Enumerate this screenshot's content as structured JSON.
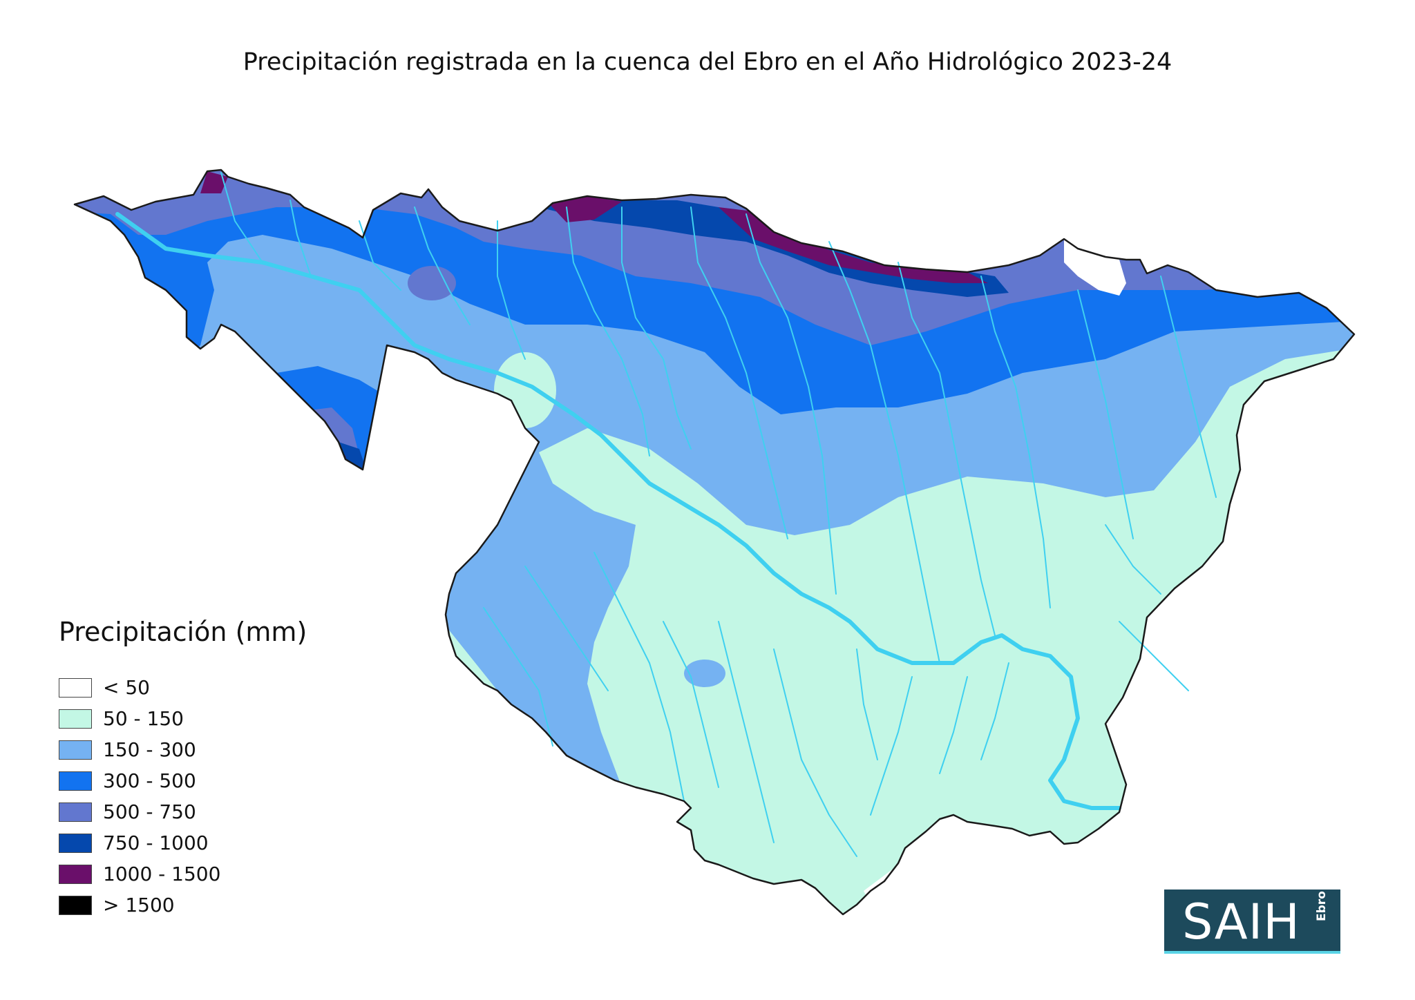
{
  "title": "Precipitación registrada en la cuenca del Ebro en el Año Hidrológico 2023-24",
  "legend": {
    "title": "Precipitación (mm)",
    "items": [
      {
        "label": "< 50",
        "color": "#ffffff"
      },
      {
        "label": "50 - 150",
        "color": "#c3f7e5"
      },
      {
        "label": "150 - 300",
        "color": "#75b2f2"
      },
      {
        "label": "300 - 500",
        "color": "#1273f0"
      },
      {
        "label": "500 - 750",
        "color": "#6277cf"
      },
      {
        "label": "750 - 1000",
        "color": "#0548ad"
      },
      {
        "label": "1000 - 1500",
        "color": "#6a0f6a"
      },
      {
        "label": "> 1500",
        "color": "#000000"
      }
    ]
  },
  "logo": {
    "main": "SAIH",
    "sub": "Ebro"
  },
  "colors": {
    "river": "#3fd0f0",
    "border": "#1a1a1a"
  }
}
